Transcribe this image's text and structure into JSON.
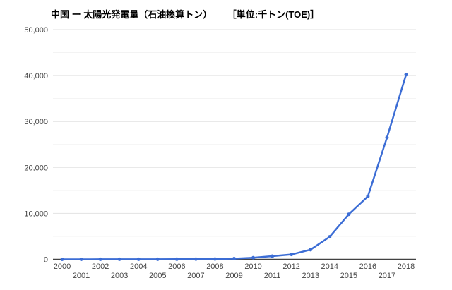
{
  "header": {
    "title": "中国 ー 太陽光発電量（石油換算トン）",
    "unit_label": "［単位:千トン(TOE)］"
  },
  "chart_data": {
    "type": "line",
    "title": "中国 ー 太陽光発電量（石油換算トン）",
    "unit": "千トン(TOE)",
    "x": [
      2000,
      2001,
      2002,
      2003,
      2004,
      2005,
      2006,
      2007,
      2008,
      2009,
      2010,
      2011,
      2012,
      2013,
      2014,
      2015,
      2016,
      2017,
      2018
    ],
    "x_tick_labels": [
      "2000",
      "2001",
      "2002",
      "2003",
      "2004",
      "2005",
      "2006",
      "2007",
      "2008",
      "2009",
      "2010",
      "2011",
      "2012",
      "2013",
      "2014",
      "2015",
      "2016",
      "2017",
      "2018"
    ],
    "series": [
      {
        "name": "中国",
        "color": "#3c6dd5",
        "values": [
          0,
          0,
          10,
          15,
          20,
          25,
          30,
          40,
          60,
          150,
          350,
          700,
          1050,
          2100,
          4900,
          9800,
          13700,
          26500,
          40200
        ]
      }
    ],
    "xlabel": "",
    "ylabel": "千トン(TOE)",
    "ylim": [
      0,
      50000
    ],
    "y_major_ticks": [
      0,
      10000,
      20000,
      30000,
      40000,
      50000
    ],
    "y_tick_labels": [
      "0",
      "10,000",
      "20,000",
      "30,000",
      "40,000",
      "50,000"
    ],
    "y_minor_step": 5000,
    "grid": true,
    "legend_position": "none",
    "marker": "circle",
    "colors": {
      "series_blue": "#3c6dd5",
      "axis_baseline": "#424242",
      "major_gridline": "#e2e2e2",
      "minor_gridline": "#f3f3f3",
      "tick_label": "#444444",
      "background": "#ffffff"
    }
  }
}
